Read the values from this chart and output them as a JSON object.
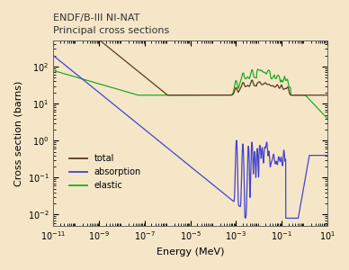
{
  "title_line1": "ENDF/B-III NI-NAT",
  "title_line2": "Principal cross sections",
  "xlabel": "Energy (MeV)",
  "ylabel": "Cross section (barns)",
  "background_color": "#f5e6c8",
  "axes_bg_color": "#f5e6c8",
  "total_color": "#5a3a1a",
  "absorption_color": "#4444cc",
  "elastic_color": "#22aa22",
  "legend_labels": [
    "total",
    "absorption",
    "elastic"
  ]
}
